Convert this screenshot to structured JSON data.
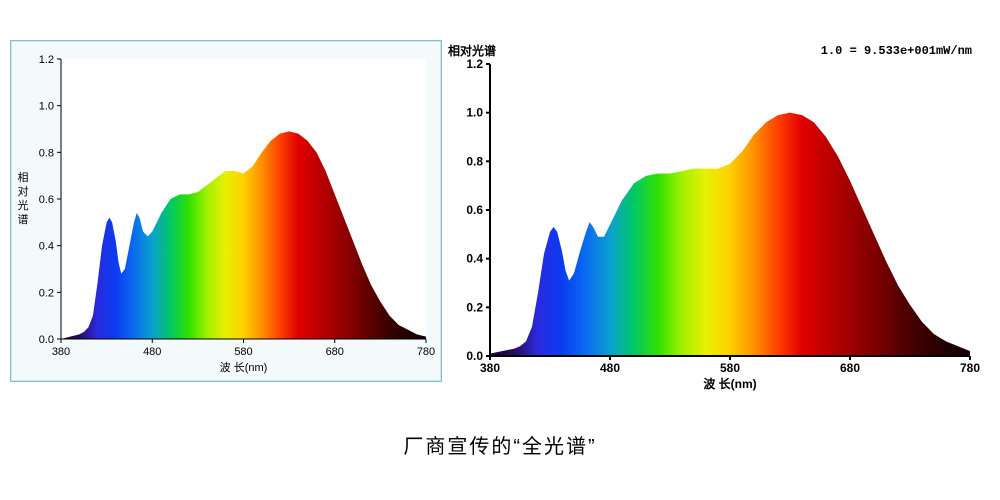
{
  "caption": "厂商宣传的“全光谱”",
  "left_chart": {
    "type": "area-spectrum",
    "ylabel": "相对光谱",
    "xlabel": "波 长(nm)",
    "xlim": [
      380,
      780
    ],
    "ylim": [
      0,
      1.2
    ],
    "xticks": [
      380,
      480,
      580,
      680,
      780
    ],
    "yticks": [
      0,
      0.2,
      0.4,
      0.6,
      0.8,
      1.0,
      1.2
    ],
    "background_color": "#f4f9fb",
    "plot_background": "#ffffff",
    "border_color": "#7fbfd0",
    "axis_color": "#000000",
    "tick_fontsize": 11,
    "label_fontsize": 11,
    "curve": [
      [
        380,
        0.0
      ],
      [
        385,
        0.005
      ],
      [
        390,
        0.01
      ],
      [
        395,
        0.015
      ],
      [
        400,
        0.02
      ],
      [
        405,
        0.03
      ],
      [
        410,
        0.05
      ],
      [
        415,
        0.1
      ],
      [
        420,
        0.24
      ],
      [
        425,
        0.4
      ],
      [
        430,
        0.5
      ],
      [
        433,
        0.52
      ],
      [
        436,
        0.5
      ],
      [
        440,
        0.42
      ],
      [
        443,
        0.33
      ],
      [
        446,
        0.28
      ],
      [
        450,
        0.3
      ],
      [
        455,
        0.4
      ],
      [
        460,
        0.5
      ],
      [
        463,
        0.54
      ],
      [
        466,
        0.52
      ],
      [
        470,
        0.46
      ],
      [
        475,
        0.44
      ],
      [
        480,
        0.46
      ],
      [
        490,
        0.54
      ],
      [
        500,
        0.6
      ],
      [
        510,
        0.62
      ],
      [
        520,
        0.62
      ],
      [
        530,
        0.63
      ],
      [
        540,
        0.66
      ],
      [
        550,
        0.69
      ],
      [
        560,
        0.72
      ],
      [
        570,
        0.72
      ],
      [
        580,
        0.71
      ],
      [
        590,
        0.74
      ],
      [
        600,
        0.8
      ],
      [
        610,
        0.85
      ],
      [
        620,
        0.88
      ],
      [
        630,
        0.89
      ],
      [
        640,
        0.88
      ],
      [
        650,
        0.85
      ],
      [
        660,
        0.8
      ],
      [
        670,
        0.72
      ],
      [
        680,
        0.62
      ],
      [
        690,
        0.52
      ],
      [
        700,
        0.42
      ],
      [
        710,
        0.32
      ],
      [
        720,
        0.23
      ],
      [
        730,
        0.16
      ],
      [
        740,
        0.1
      ],
      [
        750,
        0.06
      ],
      [
        760,
        0.04
      ],
      [
        770,
        0.02
      ],
      [
        780,
        0.01
      ]
    ],
    "spectrum_stops": [
      [
        380,
        "#1a0033"
      ],
      [
        400,
        "#2a0a5e"
      ],
      [
        420,
        "#2a2adf"
      ],
      [
        440,
        "#0a3cf0"
      ],
      [
        460,
        "#0a6cf0"
      ],
      [
        480,
        "#0aa0d0"
      ],
      [
        500,
        "#00c864"
      ],
      [
        520,
        "#30e000"
      ],
      [
        540,
        "#a0f000"
      ],
      [
        560,
        "#e8f000"
      ],
      [
        580,
        "#ffd000"
      ],
      [
        600,
        "#ff9000"
      ],
      [
        620,
        "#ff4000"
      ],
      [
        640,
        "#e00000"
      ],
      [
        660,
        "#c00000"
      ],
      [
        680,
        "#a00000"
      ],
      [
        700,
        "#800000"
      ],
      [
        720,
        "#5a0000"
      ],
      [
        740,
        "#3a0000"
      ],
      [
        760,
        "#220000"
      ],
      [
        780,
        "#120000"
      ]
    ]
  },
  "right_chart": {
    "type": "area-spectrum",
    "title": "相对光谱",
    "annotation": "1.0 = 9.533e+001mW/nm",
    "xlabel": "波 长(nm)",
    "xlim": [
      380,
      780
    ],
    "ylim": [
      0,
      1.2
    ],
    "xticks": [
      380,
      480,
      580,
      680,
      780
    ],
    "yticks": [
      0,
      0.2,
      0.4,
      0.6,
      0.8,
      1.0,
      1.2
    ],
    "background_color": "#ffffff",
    "axis_color": "#000000",
    "tick_fontsize": 12,
    "label_fontsize": 12,
    "bold_axes": true,
    "curve": [
      [
        380,
        0.01
      ],
      [
        385,
        0.015
      ],
      [
        390,
        0.02
      ],
      [
        395,
        0.025
      ],
      [
        400,
        0.03
      ],
      [
        405,
        0.04
      ],
      [
        410,
        0.06
      ],
      [
        415,
        0.12
      ],
      [
        420,
        0.26
      ],
      [
        425,
        0.42
      ],
      [
        430,
        0.51
      ],
      [
        433,
        0.53
      ],
      [
        436,
        0.51
      ],
      [
        440,
        0.43
      ],
      [
        443,
        0.35
      ],
      [
        446,
        0.31
      ],
      [
        450,
        0.34
      ],
      [
        455,
        0.43
      ],
      [
        460,
        0.51
      ],
      [
        463,
        0.55
      ],
      [
        466,
        0.53
      ],
      [
        470,
        0.49
      ],
      [
        475,
        0.49
      ],
      [
        480,
        0.54
      ],
      [
        490,
        0.64
      ],
      [
        500,
        0.71
      ],
      [
        510,
        0.74
      ],
      [
        520,
        0.75
      ],
      [
        530,
        0.75
      ],
      [
        540,
        0.76
      ],
      [
        550,
        0.77
      ],
      [
        560,
        0.77
      ],
      [
        570,
        0.77
      ],
      [
        580,
        0.79
      ],
      [
        590,
        0.84
      ],
      [
        600,
        0.91
      ],
      [
        610,
        0.96
      ],
      [
        620,
        0.99
      ],
      [
        630,
        1.0
      ],
      [
        640,
        0.99
      ],
      [
        650,
        0.96
      ],
      [
        660,
        0.9
      ],
      [
        670,
        0.82
      ],
      [
        680,
        0.72
      ],
      [
        690,
        0.61
      ],
      [
        700,
        0.5
      ],
      [
        710,
        0.39
      ],
      [
        720,
        0.29
      ],
      [
        730,
        0.21
      ],
      [
        740,
        0.14
      ],
      [
        750,
        0.09
      ],
      [
        760,
        0.06
      ],
      [
        770,
        0.04
      ],
      [
        780,
        0.02
      ]
    ],
    "spectrum_stops": [
      [
        380,
        "#1a0033"
      ],
      [
        400,
        "#2a0a5e"
      ],
      [
        420,
        "#2a2adf"
      ],
      [
        440,
        "#0a3cf0"
      ],
      [
        460,
        "#0a6cf0"
      ],
      [
        480,
        "#0aa0d0"
      ],
      [
        500,
        "#00c864"
      ],
      [
        520,
        "#30e000"
      ],
      [
        540,
        "#a0f000"
      ],
      [
        560,
        "#e8f000"
      ],
      [
        580,
        "#ffd000"
      ],
      [
        600,
        "#ff9000"
      ],
      [
        620,
        "#ff4000"
      ],
      [
        640,
        "#e00000"
      ],
      [
        660,
        "#c00000"
      ],
      [
        680,
        "#a00000"
      ],
      [
        700,
        "#800000"
      ],
      [
        720,
        "#5a0000"
      ],
      [
        740,
        "#3a0000"
      ],
      [
        760,
        "#220000"
      ],
      [
        780,
        "#120000"
      ]
    ]
  }
}
